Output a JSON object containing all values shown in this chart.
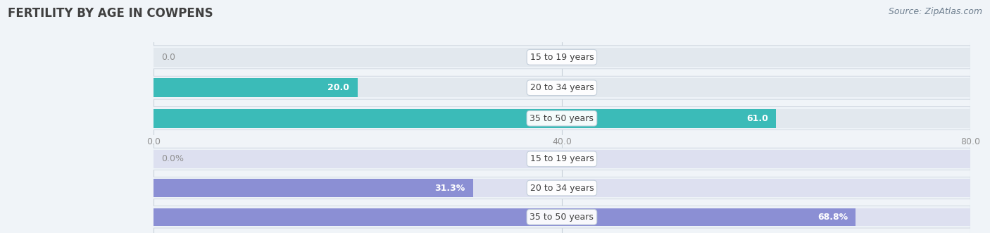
{
  "title": "FERTILITY BY AGE IN COWPENS",
  "source": "Source: ZipAtlas.com",
  "top_chart": {
    "categories": [
      "15 to 19 years",
      "20 to 34 years",
      "35 to 50 years"
    ],
    "values": [
      0.0,
      20.0,
      61.0
    ],
    "bar_color": "#3bbbb8",
    "bar_bg_color": "#e2e8ee",
    "row_bg_color": "#edf2f7",
    "xlim": [
      0,
      80.0
    ],
    "xticks": [
      0.0,
      40.0,
      80.0
    ],
    "value_labels": [
      "0.0",
      "20.0",
      "61.0"
    ]
  },
  "bottom_chart": {
    "categories": [
      "15 to 19 years",
      "20 to 34 years",
      "35 to 50 years"
    ],
    "values": [
      0.0,
      31.3,
      68.8
    ],
    "bar_color": "#8b8fd4",
    "bar_bg_color": "#dde0f0",
    "row_bg_color": "#edf2f7",
    "xlim": [
      0,
      80.0
    ],
    "xticks": [
      0.0,
      40.0,
      80.0
    ],
    "value_labels": [
      "0.0%",
      "31.3%",
      "68.8%"
    ]
  },
  "fig_bg_color": "#f0f4f8",
  "row_bg_color": "#edf2f7",
  "label_bg_color": "#ffffff",
  "title_color": "#404040",
  "source_color": "#708090",
  "tick_color": "#909090",
  "grid_color": "#c8d0d8",
  "bar_height": 0.62,
  "label_fontsize": 9.0,
  "title_fontsize": 12,
  "source_fontsize": 9,
  "value_fontsize": 9.0
}
